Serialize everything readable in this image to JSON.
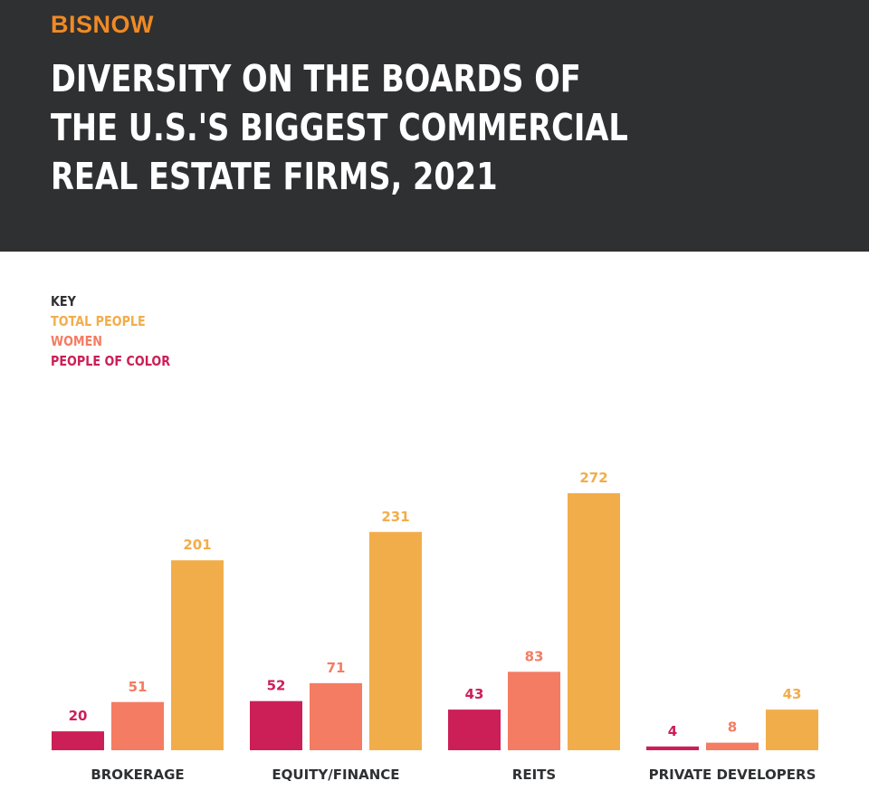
{
  "brand": {
    "name": "BISNOW",
    "color": "#f08a24"
  },
  "title_lines": [
    "DIVERSITY ON THE BOARDS OF",
    "THE U.S.'S BIGGEST COMMERCIAL",
    "REAL ESTATE FIRMS, 2021"
  ],
  "key": {
    "heading": "KEY",
    "items": [
      {
        "label": "TOTAL PEOPLE",
        "color": "#f2ad4b"
      },
      {
        "label": "WOMEN",
        "color": "#f47c62"
      },
      {
        "label": "PEOPLE OF COLOR",
        "color": "#cc1f57"
      }
    ]
  },
  "chart_data": {
    "type": "bar",
    "title": "DIVERSITY ON THE BOARDS OF THE U.S.'S BIGGEST COMMERCIAL REAL ESTATE FIRMS, 2021",
    "categories": [
      "BROKERAGE",
      "EQUITY/FINANCE",
      "REITS",
      "PRIVATE DEVELOPERS"
    ],
    "series": [
      {
        "name": "PEOPLE OF COLOR",
        "color": "#cc1f57",
        "values": [
          20,
          52,
          43,
          4
        ]
      },
      {
        "name": "WOMEN",
        "color": "#f47c62",
        "values": [
          51,
          71,
          83,
          8
        ]
      },
      {
        "name": "TOTAL PEOPLE",
        "color": "#f2ad4b",
        "values": [
          201,
          231,
          272,
          43
        ]
      }
    ],
    "ylim": [
      0,
      272
    ],
    "grid": false,
    "legend_position": "top-left",
    "data_labels": true
  }
}
